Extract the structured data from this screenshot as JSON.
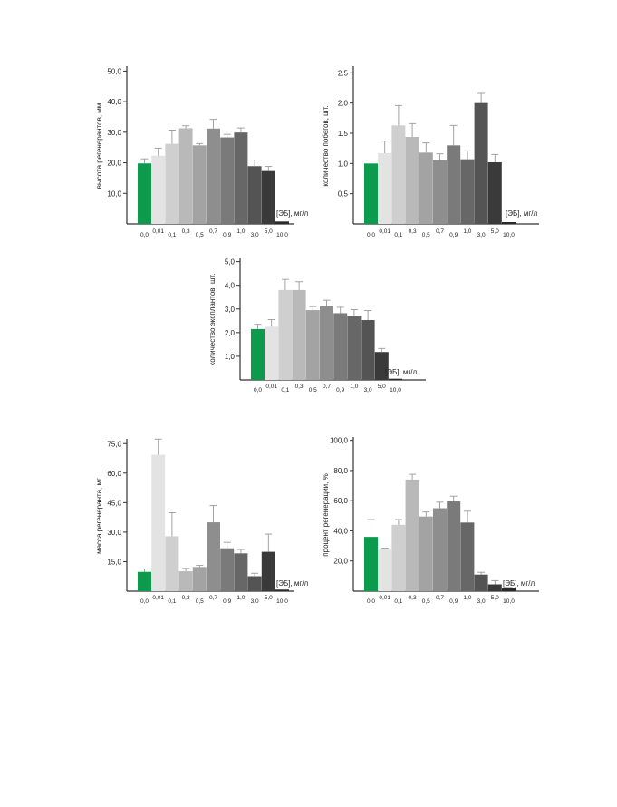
{
  "chart_data": [
    {
      "type": "bar",
      "ylabel": "высота регенерантов, мм",
      "xlabel": "[ЭБ], мг/л",
      "categories": [
        "0,0",
        "0,01",
        "0,1",
        "0,3",
        "0,5",
        "0,7",
        "0,9",
        "1,0",
        "3,0",
        "5,0",
        "10,0"
      ],
      "values": [
        19.8,
        22.3,
        26.2,
        31.3,
        25.7,
        31.2,
        28.3,
        29.9,
        18.9,
        17.3,
        0.8
      ],
      "errors": [
        1.5,
        2.5,
        4.5,
        0.8,
        0.6,
        3.0,
        1.0,
        1.5,
        2.0,
        1.5,
        0.0
      ],
      "yticks": [
        "10,0",
        "20,0",
        "30,0",
        "40,0",
        "50,0"
      ],
      "ytick_values": [
        10,
        20,
        30,
        40,
        50
      ],
      "ylim": [
        0,
        51
      ]
    },
    {
      "type": "bar",
      "ylabel": "количество побегов, шт.",
      "xlabel": "[ЭБ], мг/л",
      "categories": [
        "0,0",
        "0,01",
        "0,1",
        "0,3",
        "0,5",
        "0,7",
        "0,9",
        "1,0",
        "3,0",
        "5,0",
        "10,0"
      ],
      "values": [
        1.0,
        1.17,
        1.63,
        1.44,
        1.18,
        1.06,
        1.3,
        1.07,
        2.0,
        1.02,
        0.03
      ],
      "errors": [
        0.0,
        0.2,
        0.33,
        0.22,
        0.16,
        0.1,
        0.33,
        0.14,
        0.16,
        0.13,
        0.0
      ],
      "yticks": [
        "0.5",
        "1.0",
        "1.5",
        "2.0",
        "2.5"
      ],
      "ytick_values": [
        0.5,
        1.0,
        1.5,
        2.0,
        2.5
      ],
      "ylim": [
        0,
        2.58
      ]
    },
    {
      "type": "bar",
      "ylabel": "количество эксплантов, шт.",
      "xlabel": "[ЭБ], мг/л",
      "categories": [
        "0,0",
        "0,01",
        "0,1",
        "0,3",
        "0,5",
        "0,7",
        "0,9",
        "1,0",
        "3,0",
        "5,0",
        "10,0"
      ],
      "values": [
        2.15,
        2.25,
        3.8,
        3.8,
        2.95,
        3.12,
        2.82,
        2.72,
        2.53,
        1.18,
        0.05
      ],
      "errors": [
        0.2,
        0.3,
        0.45,
        0.35,
        0.15,
        0.25,
        0.25,
        0.25,
        0.4,
        0.15,
        0.0
      ],
      "yticks": [
        "1,0",
        "2,0",
        "3,0",
        "4,0",
        "5,0"
      ],
      "ytick_values": [
        1,
        2,
        3,
        4,
        5
      ],
      "ylim": [
        0,
        5.1
      ]
    },
    {
      "type": "bar",
      "ylabel": "масса регенеранта, мг",
      "xlabel": "[ЭБ], мг/л",
      "categories": [
        "0,0",
        "0,01",
        "0,1",
        "0,3",
        "0,5",
        "0,7",
        "0,9",
        "1,0",
        "3,0",
        "5,0",
        "10,0"
      ],
      "values": [
        9.8,
        69.3,
        27.9,
        10.1,
        12.3,
        35.0,
        21.8,
        19.2,
        7.6,
        20.0,
        0.8
      ],
      "errors": [
        1.5,
        8.0,
        12.0,
        1.5,
        0.8,
        8.5,
        3.0,
        2.0,
        1.5,
        9.0,
        0.0
      ],
      "yticks": [
        "15,0",
        "30,0",
        "45,0",
        "60,0",
        "75,0"
      ],
      "ytick_values": [
        15,
        30,
        45,
        60,
        75
      ],
      "ylim": [
        0,
        76.5
      ]
    },
    {
      "type": "bar",
      "ylabel": "процент регенерации, %",
      "xlabel": "[ЭБ], мг/л",
      "categories": [
        "0,0",
        "0,01",
        "0,1",
        "0,3",
        "0,5",
        "0,7",
        "0,9",
        "1,0",
        "3,0",
        "5,0",
        "10,0"
      ],
      "values": [
        36.0,
        27.5,
        44.0,
        74.0,
        49.5,
        55.0,
        59.5,
        45.5,
        11.0,
        4.5,
        2.0
      ],
      "errors": [
        11.5,
        1.0,
        3.5,
        3.5,
        3.0,
        4.0,
        3.5,
        7.5,
        1.5,
        2.5,
        0.5
      ],
      "yticks": [
        "20,0",
        "40,0",
        "60,0",
        "80,0",
        "100,0"
      ],
      "ytick_values": [
        20,
        40,
        60,
        80,
        100
      ],
      "ylim": [
        0,
        101
      ]
    }
  ],
  "colors": {
    "control": "#0c9a4d",
    "bars": [
      "#0c9a4d",
      "#e3e3e3",
      "#cfcfcf",
      "#b9b9b9",
      "#a3a3a3",
      "#8e8e8e",
      "#7a7a7a",
      "#676767",
      "#545454",
      "#3a3a3a",
      "#2a2a2a"
    ],
    "axis": "#333333",
    "error": "#999999"
  }
}
